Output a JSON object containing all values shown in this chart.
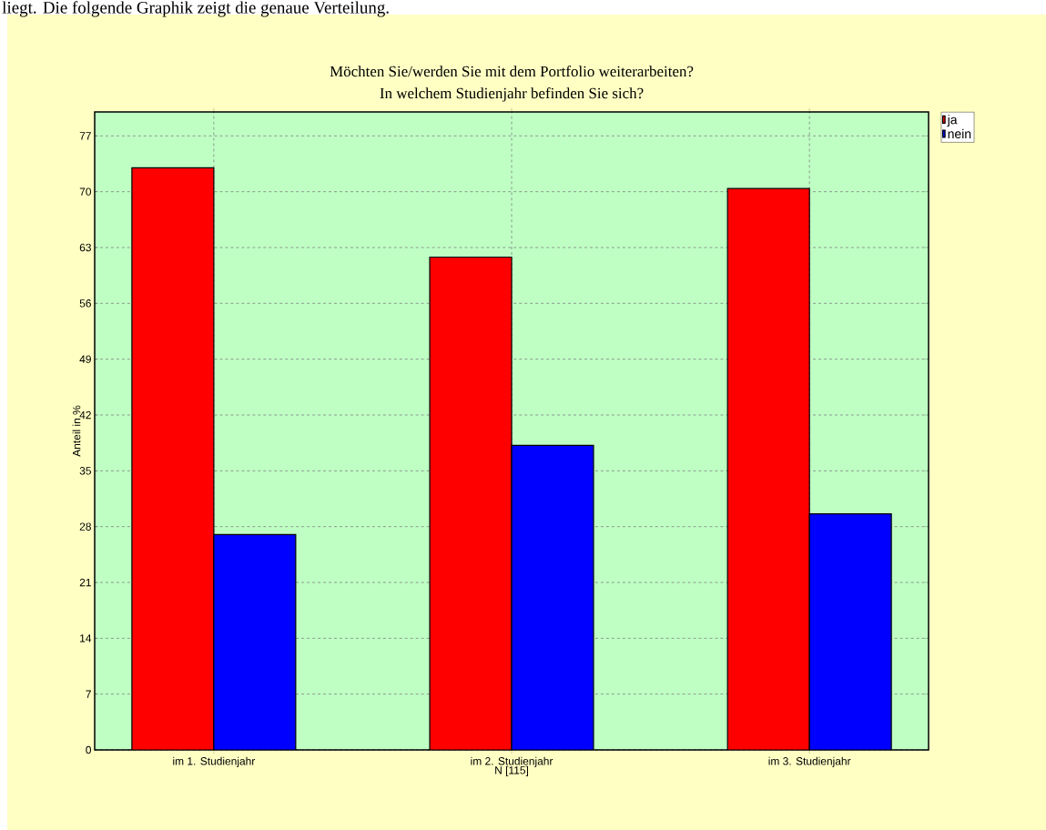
{
  "chart_data": {
    "type": "bar",
    "title": "Möchten Sie/werden Sie mit dem Portfolio weiterarbeiten?",
    "subtitle": "In welchem Studienjahr befinden Sie sich?",
    "xlabel": "N [115]",
    "ylabel": "Anteil in %",
    "categories": [
      "im 1. Studienjahr",
      "im 2. Studienjahr",
      "im 3. Studienjahr"
    ],
    "series": [
      {
        "name": "ja",
        "color": "#ff0000",
        "values": [
          73,
          61.8,
          70.4
        ]
      },
      {
        "name": "nein",
        "color": "#0000ff",
        "values": [
          27,
          38.2,
          29.6
        ]
      }
    ],
    "ylim": [
      0,
      80
    ],
    "yticks": [
      0,
      7,
      14,
      21,
      28,
      35,
      42,
      49,
      56,
      63,
      70,
      77
    ],
    "grid": true,
    "legend": "top right",
    "annotations": [
      "liegt. Die folgende Graphik zeigt die genaue Verteilung."
    ]
  }
}
